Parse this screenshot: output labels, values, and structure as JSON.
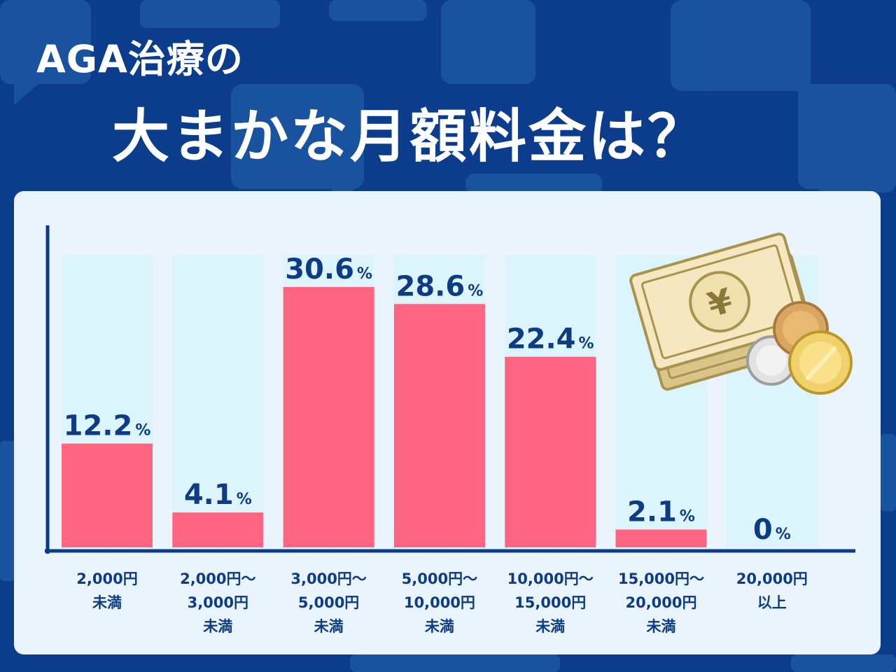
{
  "title": {
    "line1": "AGA治療の",
    "line2": "大まかな月額料金は？"
  },
  "colors": {
    "background": "#0b3d8c",
    "panel": "#eaf4fc",
    "column_track": "#dcf5fd",
    "bar": "#ff6580",
    "value_text": "#0d3b84",
    "axis": "#0d3b84"
  },
  "chart_data": {
    "type": "bar",
    "categories": [
      [
        "2,000円",
        "未満"
      ],
      [
        "2,000円～",
        "3,000円",
        "未満"
      ],
      [
        "3,000円～",
        "5,000円",
        "未満"
      ],
      [
        "5,000円～",
        "10,000円",
        "未満"
      ],
      [
        "10,000円～",
        "15,000円",
        "未満"
      ],
      [
        "15,000円～",
        "20,000円",
        "未満"
      ],
      [
        "20,000円",
        "以上"
      ]
    ],
    "values": [
      12.2,
      4.1,
      30.6,
      28.6,
      22.4,
      2.1,
      0
    ],
    "value_labels": [
      "12.2",
      "4.1",
      "30.6",
      "28.6",
      "22.4",
      "2.1",
      "0"
    ],
    "unit": "%",
    "ylim": [
      0,
      35
    ],
    "grid": false,
    "legend": false
  },
  "illustration": {
    "icon": "yen-banknotes-and-coins-icon",
    "symbol": "¥"
  }
}
